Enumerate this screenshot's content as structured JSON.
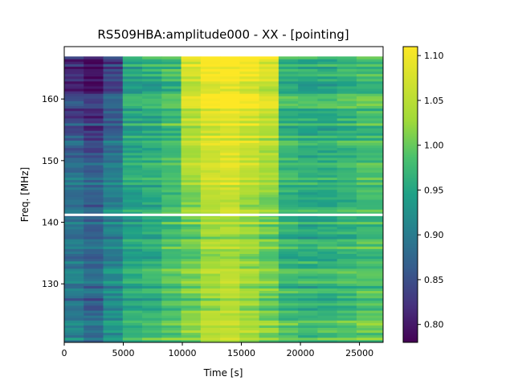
{
  "chart_data": {
    "type": "heatmap",
    "title": "RS509HBA:amplitude000 - XX - [pointing]",
    "xlabel": "Time [s]",
    "ylabel": "Freq. [MHz]",
    "xlim": [
      0,
      27000
    ],
    "ylim": [
      120.5,
      168.5
    ],
    "xticks": [
      0,
      5000,
      10000,
      15000,
      20000,
      25000
    ],
    "xtick_labels": [
      "0",
      "5000",
      "10000",
      "15000",
      "20000",
      "25000"
    ],
    "yticks": [
      130,
      140,
      150,
      160
    ],
    "ytick_labels": [
      "130",
      "140",
      "150",
      "160"
    ],
    "colorbar": {
      "colormap": "viridis",
      "range": [
        0.78,
        1.11
      ],
      "ticks": [
        0.8,
        0.85,
        0.9,
        0.95,
        1.0,
        1.05,
        1.1
      ],
      "tick_labels": [
        "0.80",
        "0.85",
        "0.90",
        "0.95",
        "1.00",
        "1.05",
        "1.10"
      ]
    },
    "time_bin_edges": [
      0,
      1650,
      3300,
      4950,
      6600,
      8250,
      9900,
      11550,
      13200,
      14850,
      16500,
      18150,
      19800,
      21450,
      23100,
      24750,
      27000
    ],
    "freq_range": [
      120.5,
      168.5
    ],
    "freq_channels": 120,
    "gap_freq_mhz": 141.2,
    "blank_top_range": [
      166.8,
      168.5
    ],
    "column_levels": [
      0.89,
      0.87,
      0.91,
      0.95,
      0.96,
      0.98,
      1.0,
      1.03,
      1.04,
      1.02,
      1.0,
      0.97,
      0.96,
      0.96,
      0.97,
      0.98,
      0.96
    ],
    "notes_visual": {
      "grid": false,
      "legend": "none",
      "gap_color": "#ffffff"
    }
  }
}
